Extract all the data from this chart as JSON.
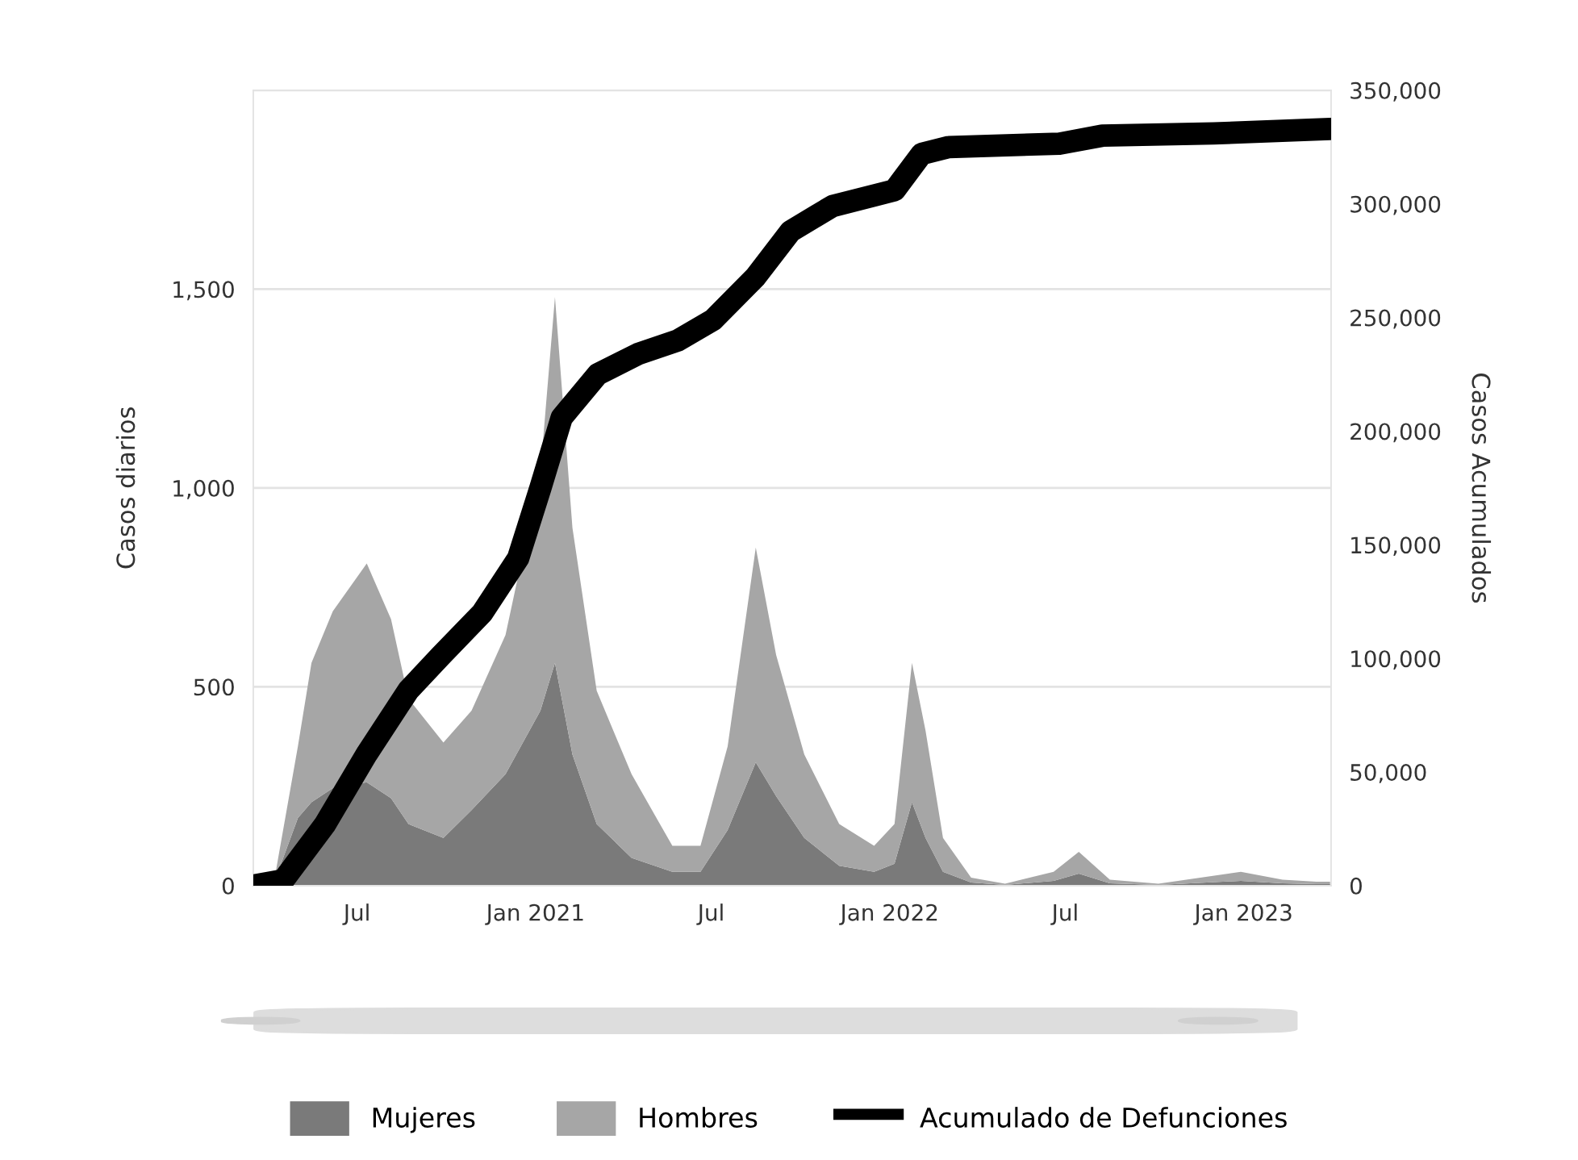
{
  "chart_data": {
    "type": "area",
    "stacked": true,
    "ylabel": "Casos diarios",
    "y2label": "Casos Acumulados",
    "x": [
      "2020-03-16",
      "2020-04-06",
      "2020-05-01",
      "2020-05-15",
      "2020-06-06",
      "2020-07-11",
      "2020-08-05",
      "2020-08-23",
      "2020-09-28",
      "2020-10-27",
      "2020-12-01",
      "2021-01-06",
      "2021-01-21",
      "2021-02-08",
      "2021-03-05",
      "2021-04-10",
      "2021-05-22",
      "2021-06-20",
      "2021-07-18",
      "2021-08-16",
      "2021-09-06",
      "2021-10-05",
      "2021-11-10",
      "2021-12-16",
      "2022-01-06",
      "2022-01-24",
      "2022-02-07",
      "2022-02-25",
      "2022-03-26",
      "2022-04-30",
      "2022-06-19",
      "2022-07-15",
      "2022-08-16",
      "2022-10-05",
      "2022-12-29",
      "2023-02-10",
      "2023-03-17",
      "2023-03-31"
    ],
    "series": [
      {
        "name": "Mujeres",
        "color": "#7a7a7a",
        "values": [
          0,
          5,
          170,
          210,
          245,
          260,
          220,
          155,
          120,
          190,
          280,
          440,
          560,
          330,
          155,
          70,
          35,
          35,
          140,
          310,
          225,
          120,
          50,
          35,
          55,
          210,
          120,
          35,
          8,
          2,
          12,
          30,
          6,
          2,
          12,
          6,
          4,
          4
        ]
      },
      {
        "name": "Hombres",
        "color": "#a6a6a6",
        "values": [
          0,
          0,
          180,
          350,
          445,
          550,
          450,
          315,
          240,
          250,
          350,
          600,
          920,
          570,
          335,
          210,
          65,
          65,
          210,
          540,
          355,
          210,
          105,
          65,
          100,
          350,
          270,
          85,
          12,
          3,
          23,
          55,
          9,
          3,
          23,
          9,
          6,
          6
        ]
      },
      {
        "name": "Acumulado de Defunciones",
        "type": "line",
        "axis": "y2",
        "color": "#000000",
        "x": [
          "2020-03-16",
          "2020-04-16",
          "2020-05-29",
          "2020-07-11",
          "2020-08-23",
          "2020-09-25",
          "2020-11-07",
          "2020-12-14",
          "2021-01-06",
          "2021-01-28",
          "2021-03-06",
          "2021-04-17",
          "2021-05-28",
          "2021-07-03",
          "2021-08-16",
          "2021-09-21",
          "2021-11-03",
          "2022-01-06",
          "2022-02-03",
          "2022-03-03",
          "2022-06-25",
          "2022-08-08",
          "2022-12-01",
          "2023-03-31"
        ],
        "values": [
          0,
          2400,
          27000,
          58000,
          86000,
          101000,
          120000,
          144000,
          175000,
          206000,
          225000,
          234000,
          240000,
          249000,
          268000,
          288000,
          299000,
          306000,
          322000,
          325000,
          326500,
          330000,
          331000,
          333000
        ]
      }
    ],
    "xlim": [
      "2020-03-16",
      "2023-04-01"
    ],
    "xticks": [
      {
        "value": "2020-07-01",
        "label": "Jul"
      },
      {
        "value": "2021-01-01",
        "label": "Jan 2021"
      },
      {
        "value": "2021-07-01",
        "label": "Jul"
      },
      {
        "value": "2022-01-01",
        "label": "Jan 2022"
      },
      {
        "value": "2022-07-01",
        "label": "Jul"
      },
      {
        "value": "2023-01-01",
        "label": "Jan 2023"
      }
    ],
    "ylim": [
      0,
      2000
    ],
    "yticks": [
      0,
      500,
      {
        "value": 1000,
        "label": "1,000"
      },
      {
        "value": 1500,
        "label": "1,500"
      }
    ],
    "y2lim": [
      0,
      350000
    ],
    "y2ticks": [
      0,
      {
        "value": 50000,
        "label": "50,000"
      },
      {
        "value": 100000,
        "label": "100,000"
      },
      {
        "value": 150000,
        "label": "150,000"
      },
      {
        "value": 200000,
        "label": "200,000"
      },
      {
        "value": 250000,
        "label": "250,000"
      },
      {
        "value": 300000,
        "label": "300,000"
      },
      {
        "value": 350000,
        "label": "350,000"
      }
    ],
    "grid": "y",
    "legend": "bottom",
    "line_style": "solid",
    "marker": "none"
  }
}
